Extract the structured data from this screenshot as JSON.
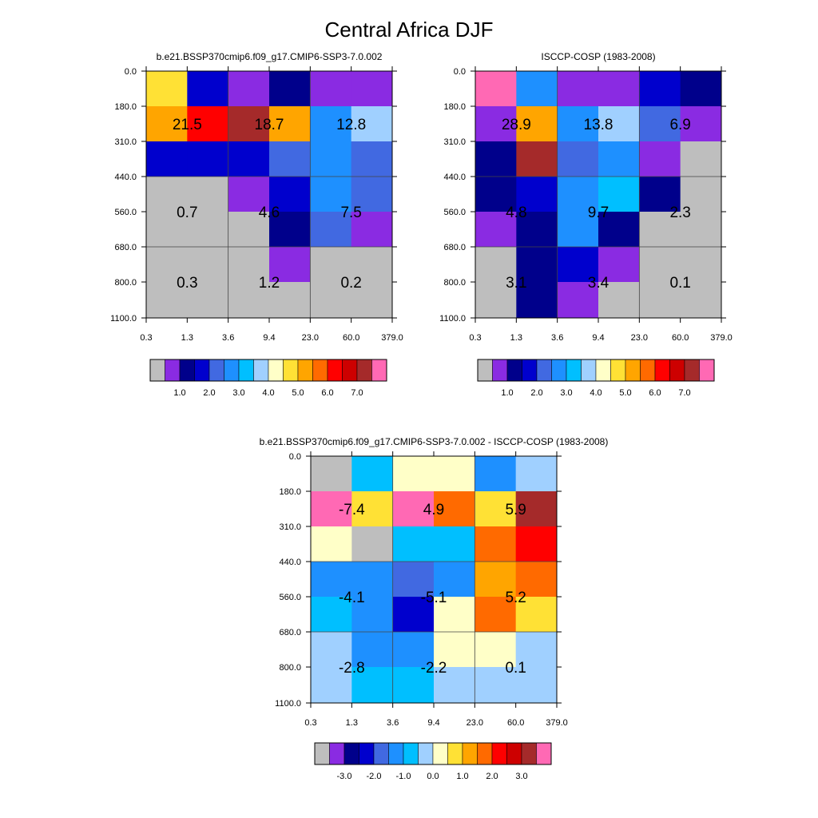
{
  "title": "Central Africa DJF",
  "palette": {
    "abs": [
      "#bebebe",
      "#8a2be2",
      "#00008b",
      "#0000cd",
      "#4169e1",
      "#1e90ff",
      "#00bfff",
      "#a0d0ff",
      "#ffffc8",
      "#ffe135",
      "#ffa500",
      "#ff6a00",
      "#ff0000",
      "#cd0000",
      "#a52a2a",
      "#ff69b4"
    ],
    "diff": [
      "#bebebe",
      "#8a2be2",
      "#00008b",
      "#0000cd",
      "#4169e1",
      "#1e90ff",
      "#00bfff",
      "#a0d0ff",
      "#ffffc8",
      "#ffe135",
      "#ffa500",
      "#ff6a00",
      "#ff0000",
      "#cd0000",
      "#a52a2a",
      "#ff69b4"
    ]
  },
  "chart_data": [
    {
      "type": "heatmap",
      "title": "b.e21.BSSP370cmip6.f09_g17.CMIP6-SSP3-7.0.002",
      "x_ticks": [
        "0.3",
        "1.3",
        "3.6",
        "9.4",
        "23.0",
        "60.0",
        "379.0"
      ],
      "y_ticks": [
        "0.0",
        "180.0",
        "310.0",
        "440.0",
        "560.0",
        "680.0",
        "800.0",
        "1100.0"
      ],
      "cells": [
        [
          9,
          3,
          1,
          2,
          1,
          1
        ],
        [
          10,
          12,
          14,
          10,
          5,
          7
        ],
        [
          3,
          3,
          3,
          4,
          5,
          4
        ],
        [
          0,
          0,
          1,
          3,
          5,
          4
        ],
        [
          0,
          0,
          0,
          2,
          4,
          1
        ],
        [
          0,
          0,
          0,
          0,
          0,
          0
        ],
        [
          0,
          0,
          0,
          0,
          0,
          0
        ]
      ],
      "cell_overrides": [
        {
          "row": 5,
          "col": 3,
          "color_index": 1
        }
      ],
      "summary_labels": [
        {
          "row": "high",
          "col": "low",
          "text": "21.5"
        },
        {
          "row": "high",
          "col": "mid",
          "text": "18.7"
        },
        {
          "row": "high",
          "col": "high",
          "text": "12.8"
        },
        {
          "row": "mid",
          "col": "low",
          "text": "0.7"
        },
        {
          "row": "mid",
          "col": "mid",
          "text": "4.6"
        },
        {
          "row": "mid",
          "col": "high",
          "text": "7.5"
        },
        {
          "row": "low",
          "col": "low",
          "text": "0.3"
        },
        {
          "row": "low",
          "col": "mid",
          "text": "1.2"
        },
        {
          "row": "low",
          "col": "high",
          "text": "0.2"
        }
      ],
      "colorbar_labels": [
        "1.0",
        "2.0",
        "3.0",
        "4.0",
        "5.0",
        "6.0",
        "7.0"
      ]
    },
    {
      "type": "heatmap",
      "title": "ISCCP-COSP (1983-2008)",
      "x_ticks": [
        "0.3",
        "1.3",
        "3.6",
        "9.4",
        "23.0",
        "60.0",
        "379.0"
      ],
      "y_ticks": [
        "0.0",
        "180.0",
        "310.0",
        "440.0",
        "560.0",
        "680.0",
        "800.0",
        "1100.0"
      ],
      "cells": [
        [
          15,
          5,
          1,
          1,
          3,
          2
        ],
        [
          1,
          10,
          5,
          7,
          4,
          1
        ],
        [
          2,
          14,
          4,
          5,
          1,
          0
        ],
        [
          2,
          3,
          5,
          6,
          2,
          0
        ],
        [
          1,
          2,
          5,
          2,
          0,
          0
        ],
        [
          0,
          2,
          3,
          1,
          0,
          0
        ],
        [
          0,
          2,
          1,
          0,
          0,
          0
        ]
      ],
      "summary_labels": [
        {
          "row": "high",
          "col": "low",
          "text": "28.9"
        },
        {
          "row": "high",
          "col": "mid",
          "text": "13.8"
        },
        {
          "row": "high",
          "col": "high",
          "text": "6.9"
        },
        {
          "row": "mid",
          "col": "low",
          "text": "4.8"
        },
        {
          "row": "mid",
          "col": "mid",
          "text": "9.7"
        },
        {
          "row": "mid",
          "col": "high",
          "text": "2.3"
        },
        {
          "row": "low",
          "col": "low",
          "text": "3.1"
        },
        {
          "row": "low",
          "col": "mid",
          "text": "3.4"
        },
        {
          "row": "low",
          "col": "high",
          "text": "0.1"
        }
      ],
      "colorbar_labels": [
        "1.0",
        "2.0",
        "3.0",
        "4.0",
        "5.0",
        "6.0",
        "7.0"
      ]
    },
    {
      "type": "heatmap",
      "title": "b.e21.BSSP370cmip6.f09_g17.CMIP6-SSP3-7.0.002 - ISCCP-COSP (1983-2008)",
      "x_ticks": [
        "0.3",
        "1.3",
        "3.6",
        "9.4",
        "23.0",
        "60.0",
        "379.0"
      ],
      "y_ticks": [
        "0.0",
        "180.0",
        "310.0",
        "440.0",
        "560.0",
        "680.0",
        "800.0",
        "1100.0"
      ],
      "cells": [
        [
          0,
          6,
          8,
          8,
          5,
          7
        ],
        [
          15,
          9,
          15,
          11,
          9,
          14
        ],
        [
          8,
          0,
          6,
          6,
          11,
          12
        ],
        [
          5,
          5,
          4,
          5,
          10,
          11
        ],
        [
          6,
          5,
          3,
          8,
          11,
          9
        ],
        [
          7,
          5,
          5,
          8,
          8,
          7
        ],
        [
          7,
          6,
          6,
          7,
          7,
          7
        ]
      ],
      "summary_labels": [
        {
          "row": "high",
          "col": "low",
          "text": "-7.4"
        },
        {
          "row": "high",
          "col": "mid",
          "text": "4.9"
        },
        {
          "row": "high",
          "col": "high",
          "text": "5.9"
        },
        {
          "row": "mid",
          "col": "low",
          "text": "-4.1"
        },
        {
          "row": "mid",
          "col": "mid",
          "text": "-5.1"
        },
        {
          "row": "mid",
          "col": "high",
          "text": "5.2"
        },
        {
          "row": "low",
          "col": "low",
          "text": "-2.8"
        },
        {
          "row": "low",
          "col": "mid",
          "text": "-2.2"
        },
        {
          "row": "low",
          "col": "high",
          "text": "0.1"
        }
      ],
      "colorbar_labels": [
        "-3.0",
        "-2.0",
        "-1.0",
        "0.0",
        "1.0",
        "2.0",
        "3.0"
      ]
    }
  ]
}
